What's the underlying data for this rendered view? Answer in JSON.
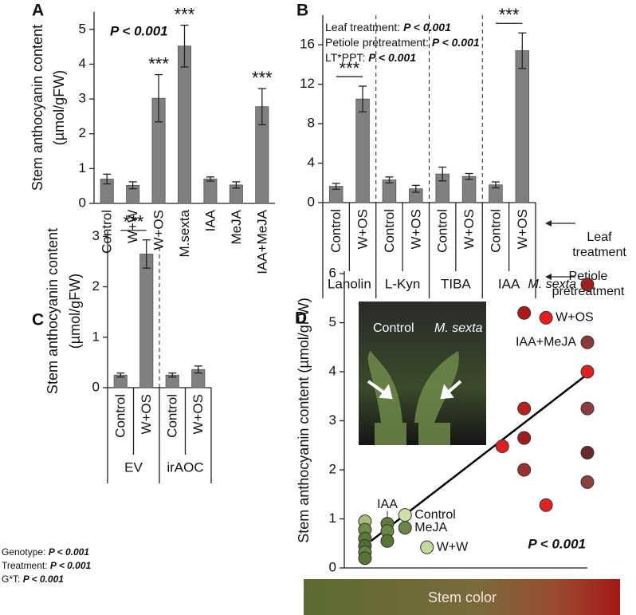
{
  "chart_data": [
    {
      "type": "bar",
      "panel": "A",
      "ylabel": [
        "Stem anthocyanin content",
        "(µmol/gFW)"
      ],
      "annotations": [
        "P < 0.001"
      ],
      "categories": [
        "Control",
        "W+W",
        "W+OS",
        "M.sexta",
        "IAA",
        "MeJA",
        "IAA+MeJA"
      ],
      "values": [
        0.7,
        0.52,
        3.02,
        4.52,
        0.7,
        0.53,
        2.78
      ],
      "errors": [
        0.14,
        0.1,
        0.68,
        0.6,
        0.06,
        0.09,
        0.52
      ],
      "significance": [
        null,
        null,
        "***",
        "***",
        null,
        null,
        "***"
      ],
      "color": "#808080",
      "ylim": [
        0,
        5.5
      ],
      "yticks": [
        0,
        1,
        2,
        3,
        4,
        5
      ]
    },
    {
      "type": "bar",
      "panel": "B",
      "annotations": [
        {
          "label": "Leaf treatment:",
          "p": "P < 0.001"
        },
        {
          "label": "Petiole pretreatment:",
          "p": "P < 0.001"
        },
        {
          "label": "LT*PPT:",
          "p": "P < 0.001"
        }
      ],
      "categories": [
        "Control",
        "W+OS",
        "Control",
        "W+OS",
        "Control",
        "W+OS",
        "Control",
        "W+OS"
      ],
      "groups": [
        "Lanolin",
        "L-Kyn",
        "TIBA",
        "IAA"
      ],
      "row_labels": [
        [
          "Leaf",
          "treatment"
        ],
        [
          "Petiole",
          "pretreatment"
        ]
      ],
      "values": [
        1.65,
        10.5,
        2.3,
        1.4,
        2.9,
        2.65,
        1.8,
        15.4
      ],
      "errors": [
        0.3,
        1.3,
        0.3,
        0.35,
        0.7,
        0.3,
        0.3,
        1.8
      ],
      "significance": [
        null,
        "***",
        null,
        null,
        null,
        null,
        null,
        "***"
      ],
      "color": "#808080",
      "ylim": [
        0,
        19
      ],
      "yticks": [
        0,
        4,
        8,
        12,
        16
      ]
    },
    {
      "type": "bar",
      "panel": "C",
      "ylabel": [
        "Stem anthocyanin content",
        "(µmol/gFW)"
      ],
      "annotations": [
        {
          "label": "Genotype:",
          "p": "P < 0.001"
        },
        {
          "label": "Treatment:",
          "p": "P < 0.001"
        },
        {
          "label": "G*T:",
          "p": "P < 0.001"
        }
      ],
      "categories": [
        "Control",
        "W+OS",
        "Control",
        "W+OS"
      ],
      "groups": [
        "EV",
        "irAOC"
      ],
      "values": [
        0.25,
        2.65,
        0.25,
        0.36
      ],
      "errors": [
        0.04,
        0.28,
        0.04,
        0.07
      ],
      "significance": [
        null,
        "***",
        null,
        null
      ],
      "color": "#808080",
      "ylim": [
        0,
        3.1
      ],
      "yticks": [
        0,
        1,
        2,
        3
      ]
    },
    {
      "type": "scatter",
      "panel": "D",
      "ylabel": "Stem anthocyanin content (µmol/gFW)",
      "xlabel": "Stem color",
      "annotations": [
        "P < 0.001"
      ],
      "inset": {
        "labels": [
          "Control",
          "M. sexta"
        ]
      },
      "x": [
        8.5,
        8.5,
        8.5,
        8.5,
        8.5,
        8.5,
        17.7,
        17.7,
        17.7,
        25,
        25,
        34,
        65,
        74,
        74,
        74,
        74,
        83,
        83,
        100,
        100,
        100,
        100,
        100,
        100
      ],
      "values": [
        0.95,
        0.78,
        0.6,
        0.45,
        0.32,
        0.2,
        0.9,
        0.75,
        0.55,
        1.08,
        0.82,
        0.42,
        2.48,
        5.2,
        3.25,
        2.65,
        2.0,
        5.1,
        1.28,
        5.78,
        4.6,
        4.0,
        3.25,
        2.35,
        1.75
      ],
      "colors": [
        "#a9bd7a",
        "#6e8a45",
        "#5a7838",
        "#4f6d32",
        "#647f3f",
        "#57733a",
        "#5e7a3c",
        "#6b8744",
        "#587536",
        "#cfe0a8",
        "#6d8446",
        "#c5d99a",
        "#e02020",
        "#b01818",
        "#b82020",
        "#a01c1c",
        "#9a3030",
        "#e81c1c",
        "#e02424",
        "#a02020",
        "#8a3a38",
        "#e02020",
        "#8c3c3a",
        "#6a2a28",
        "#8c4040"
      ],
      "labels": [
        null,
        null,
        null,
        null,
        null,
        null,
        "IAA",
        null,
        null,
        "Control",
        "MeJA",
        "W+W",
        null,
        null,
        null,
        null,
        null,
        "W+OS",
        null,
        "M. sexta",
        "IAA+MeJA",
        null,
        null,
        null,
        null
      ],
      "trendline": {
        "x": [
          11,
          100
        ],
        "y": [
          0.55,
          3.95
        ]
      },
      "xlim": [
        0,
        100
      ],
      "ylim": [
        0,
        6.05
      ],
      "yticks": [
        0,
        1,
        2,
        3,
        4,
        5,
        6
      ]
    }
  ]
}
